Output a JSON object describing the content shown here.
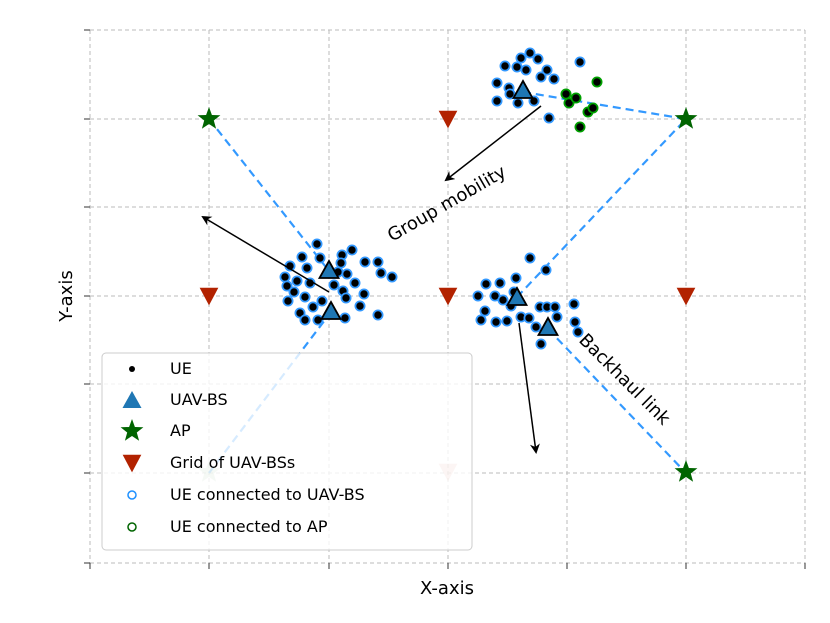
{
  "axes": {
    "xlabel": "X-axis",
    "ylabel": "Y-axis",
    "grid": true,
    "tick_labels_shown": false
  },
  "annotations": {
    "group_mobility": "Group mobility",
    "backhaul_link": "Backhaul link"
  },
  "legend": {
    "placement": "lower-left",
    "items": [
      {
        "label": "UE",
        "symbol": "dot",
        "color": "#000000"
      },
      {
        "label": "UAV-BS",
        "symbol": "triangle-up",
        "color": "#1f77b4"
      },
      {
        "label": "AP",
        "symbol": "star",
        "color": "#006400"
      },
      {
        "label": "Grid of UAV-BSs",
        "symbol": "triangle-down",
        "color": "#b22200"
      },
      {
        "label": "UE connected to UAV-BS",
        "symbol": "ring",
        "color": "#1e90ff"
      },
      {
        "label": "UE connected to AP",
        "symbol": "ring",
        "color": "#006400"
      }
    ]
  },
  "colors": {
    "uav": "#1f77b4",
    "ap": "#006400",
    "grid_marker": "#b22200",
    "ue_uav_ring": "#3399ff",
    "ue_ap_ring": "#00a000",
    "backhaul": "#3399ff",
    "gridline": "#bbbbbb"
  }
}
